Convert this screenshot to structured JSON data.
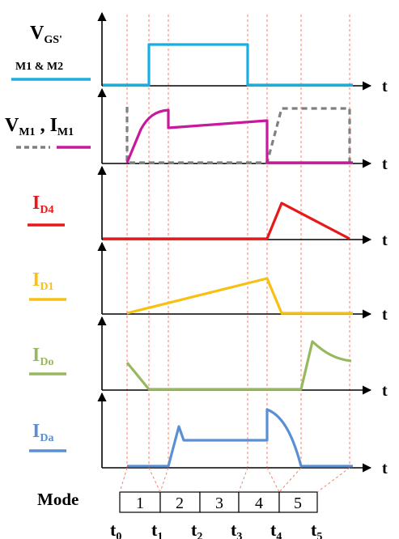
{
  "labels": {
    "vgs_main": "V",
    "vgs_sub": "GS'",
    "vgs_note": "M1 & M2",
    "vm1_main": "V",
    "vm1_sub": "M1",
    "sep": " , ",
    "im1_main": "I",
    "im1_sub": "M1",
    "id4_main": "I",
    "id4_sub": "D4",
    "id1_main": "I",
    "id1_sub": "D1",
    "ido_main": "I",
    "ido_sub": "Do",
    "ida_main": "I",
    "ida_sub": "Da"
  },
  "axis_label": "t",
  "mode": {
    "label": "Mode",
    "boxes": [
      "1",
      "2",
      "3",
      "4",
      "5"
    ]
  },
  "time_marks": [
    {
      "main": "t",
      "sub": "0"
    },
    {
      "main": "t",
      "sub": "1"
    },
    {
      "main": "t",
      "sub": "2"
    },
    {
      "main": "t",
      "sub": "3"
    },
    {
      "main": "t",
      "sub": "4"
    },
    {
      "main": "t",
      "sub": "5"
    }
  ],
  "colors": {
    "vgs": "#1aaee0",
    "vm1": "#808080",
    "im1": "#c8189c",
    "id4": "#e81818",
    "id1": "#f8c010",
    "ido": "#98b860",
    "ida": "#5b8fd4",
    "guide": "#f08070",
    "axis": "#000000",
    "label_black": "#000000"
  }
}
